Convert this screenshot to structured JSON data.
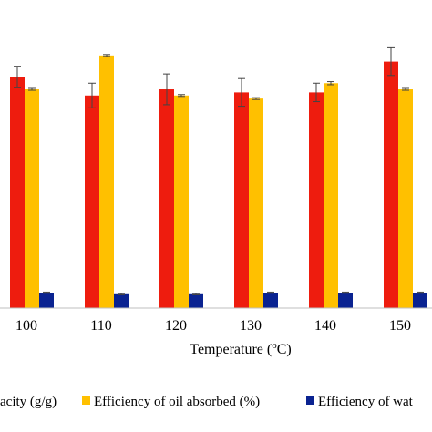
{
  "chart_data": {
    "type": "bar",
    "categories": [
      "100",
      "110",
      "120",
      "130",
      "140",
      "150"
    ],
    "xlabel_prefix": "Temperature (",
    "xlabel_sup": "o",
    "xlabel_suffix": "C)",
    "ylim": [
      0,
      100
    ],
    "series": [
      {
        "name": "acity (g/g)",
        "color": "#EE1C0E",
        "values": [
          75,
          69,
          71,
          70,
          70,
          80
        ],
        "errors": [
          3.5,
          4,
          5,
          4.5,
          3,
          4.5
        ]
      },
      {
        "name": "Efficiency of oil absorbed (%)",
        "color": "#FFC000",
        "values": [
          71,
          82,
          69,
          68,
          73,
          71
        ],
        "errors": [
          0.3,
          0.3,
          0.3,
          0.3,
          0.5,
          0.3
        ]
      },
      {
        "name": "Efficiency of wat",
        "color": "#0A2391",
        "values": [
          5,
          4.5,
          4.5,
          5,
          5,
          5
        ],
        "errors": [
          0.2,
          0.2,
          0.2,
          0.2,
          0.2,
          0.2
        ]
      }
    ],
    "legend_position": "bottom",
    "grid": false
  }
}
